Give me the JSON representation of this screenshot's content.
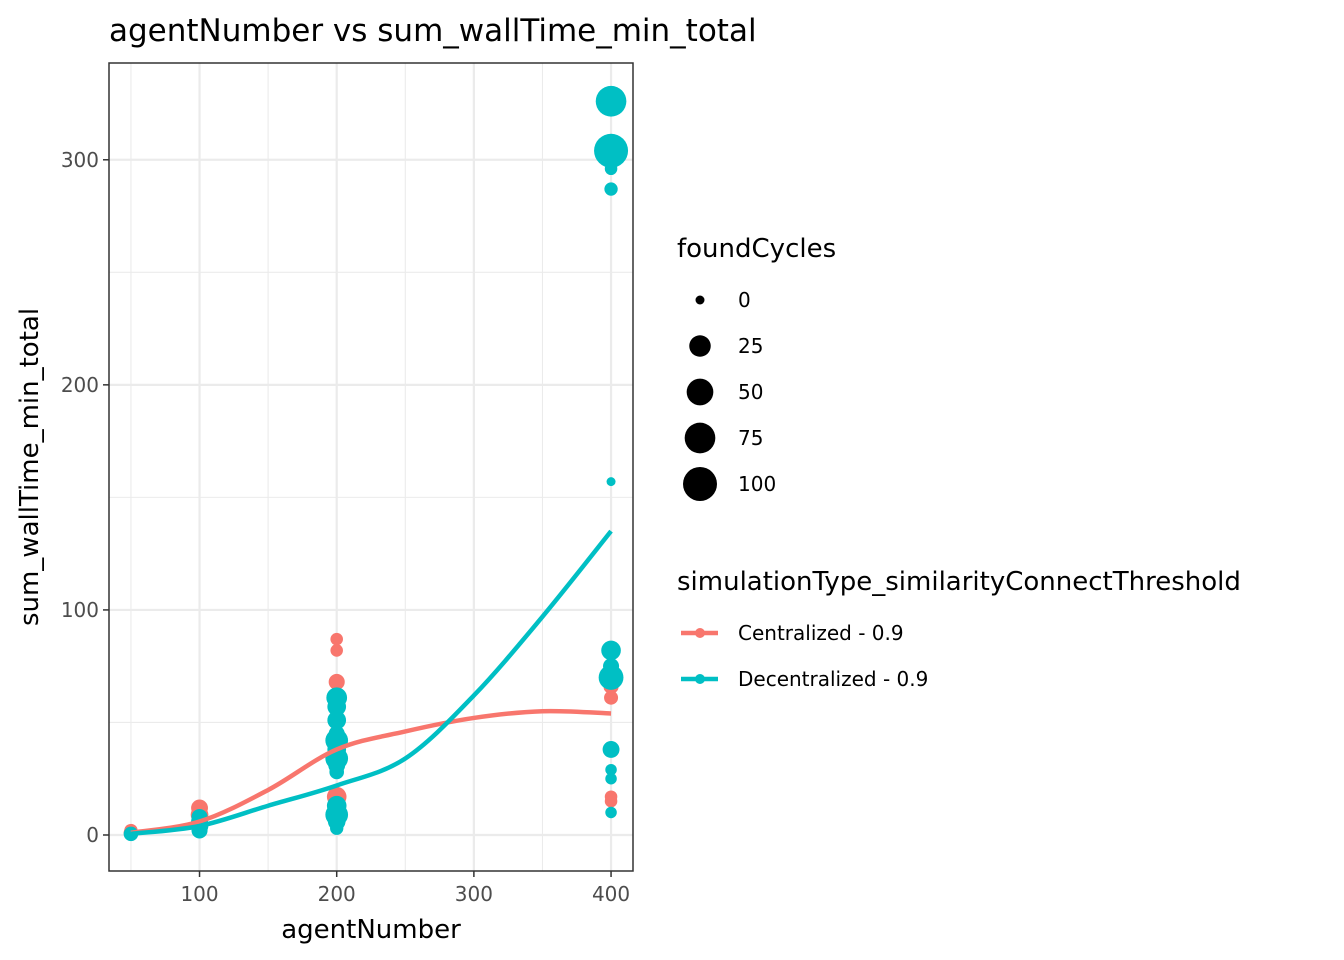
{
  "chart_data": {
    "type": "scatter",
    "title": "agentNumber  vs  sum_wallTime_min_total",
    "xlabel": "agentNumber",
    "ylabel": "sum_wallTime_min_total",
    "xlim": [
      34,
      416
    ],
    "ylim": [
      -16,
      343
    ],
    "x_ticks": [
      100,
      200,
      300,
      400
    ],
    "y_ticks": [
      0,
      100,
      200,
      300
    ],
    "grid": true,
    "legend_placement": "right",
    "size_legend": {
      "title": "foundCycles",
      "entries": [
        {
          "label": "0",
          "value": 0
        },
        {
          "label": "25",
          "value": 25
        },
        {
          "label": "50",
          "value": 50
        },
        {
          "label": "75",
          "value": 75
        },
        {
          "label": "100",
          "value": 100
        }
      ]
    },
    "color_legend": {
      "title": "simulationType_similarityConnectThreshold"
    },
    "series": [
      {
        "name": "Centralized - 0.9",
        "color": "#F8766D",
        "points": [
          {
            "x": 50,
            "y": 1,
            "size": 5
          },
          {
            "x": 50,
            "y": 2,
            "size": 3
          },
          {
            "x": 100,
            "y": 12,
            "size": 10
          },
          {
            "x": 100,
            "y": 9,
            "size": 12
          },
          {
            "x": 100,
            "y": 7,
            "size": 8
          },
          {
            "x": 100,
            "y": 5,
            "size": 6
          },
          {
            "x": 200,
            "y": 87,
            "size": 2
          },
          {
            "x": 200,
            "y": 82,
            "size": 2
          },
          {
            "x": 200,
            "y": 68,
            "size": 8
          },
          {
            "x": 200,
            "y": 61,
            "size": 12
          },
          {
            "x": 200,
            "y": 57,
            "size": 6
          },
          {
            "x": 200,
            "y": 42,
            "size": 10
          },
          {
            "x": 200,
            "y": 36,
            "size": 8
          },
          {
            "x": 200,
            "y": 17,
            "size": 18
          },
          {
            "x": 200,
            "y": 12,
            "size": 10
          },
          {
            "x": 400,
            "y": 81,
            "size": 2
          },
          {
            "x": 400,
            "y": 72,
            "size": 12
          },
          {
            "x": 400,
            "y": 66,
            "size": 6
          },
          {
            "x": 400,
            "y": 61,
            "size": 4
          },
          {
            "x": 400,
            "y": 17,
            "size": 2
          },
          {
            "x": 400,
            "y": 15,
            "size": 2
          }
        ],
        "smooth": {
          "x": [
            50,
            100,
            150,
            200,
            250,
            300,
            350,
            400
          ],
          "y": [
            1,
            6,
            20,
            38,
            46,
            52,
            55,
            54
          ]
        }
      },
      {
        "name": "Decentralized - 0.9",
        "color": "#00BFC4",
        "points": [
          {
            "x": 50,
            "y": 0.5,
            "size": 5
          },
          {
            "x": 100,
            "y": 8,
            "size": 8
          },
          {
            "x": 100,
            "y": 6,
            "size": 10
          },
          {
            "x": 100,
            "y": 4,
            "size": 12
          },
          {
            "x": 100,
            "y": 2,
            "size": 8
          },
          {
            "x": 200,
            "y": 61,
            "size": 22
          },
          {
            "x": 200,
            "y": 57,
            "size": 15
          },
          {
            "x": 200,
            "y": 51,
            "size": 15
          },
          {
            "x": 200,
            "y": 45,
            "size": 8
          },
          {
            "x": 200,
            "y": 42,
            "size": 30
          },
          {
            "x": 200,
            "y": 38,
            "size": 15
          },
          {
            "x": 200,
            "y": 34,
            "size": 30
          },
          {
            "x": 200,
            "y": 31,
            "size": 10
          },
          {
            "x": 200,
            "y": 28,
            "size": 5
          },
          {
            "x": 200,
            "y": 13,
            "size": 18
          },
          {
            "x": 200,
            "y": 9,
            "size": 30
          },
          {
            "x": 200,
            "y": 6,
            "size": 12
          },
          {
            "x": 200,
            "y": 3,
            "size": 3
          },
          {
            "x": 400,
            "y": 326,
            "size": 75
          },
          {
            "x": 400,
            "y": 304,
            "size": 100
          },
          {
            "x": 400,
            "y": 296,
            "size": 2
          },
          {
            "x": 400,
            "y": 287,
            "size": 3
          },
          {
            "x": 400,
            "y": 157,
            "size": 0
          },
          {
            "x": 400,
            "y": 82,
            "size": 18
          },
          {
            "x": 400,
            "y": 75,
            "size": 8
          },
          {
            "x": 400,
            "y": 70,
            "size": 40
          },
          {
            "x": 400,
            "y": 38,
            "size": 10
          },
          {
            "x": 400,
            "y": 29,
            "size": 1
          },
          {
            "x": 400,
            "y": 25,
            "size": 1
          },
          {
            "x": 400,
            "y": 10,
            "size": 1
          }
        ],
        "smooth": {
          "x": [
            50,
            100,
            150,
            200,
            250,
            300,
            350,
            400
          ],
          "y": [
            0.5,
            4,
            13,
            22,
            34,
            62,
            97,
            135
          ]
        }
      }
    ]
  }
}
